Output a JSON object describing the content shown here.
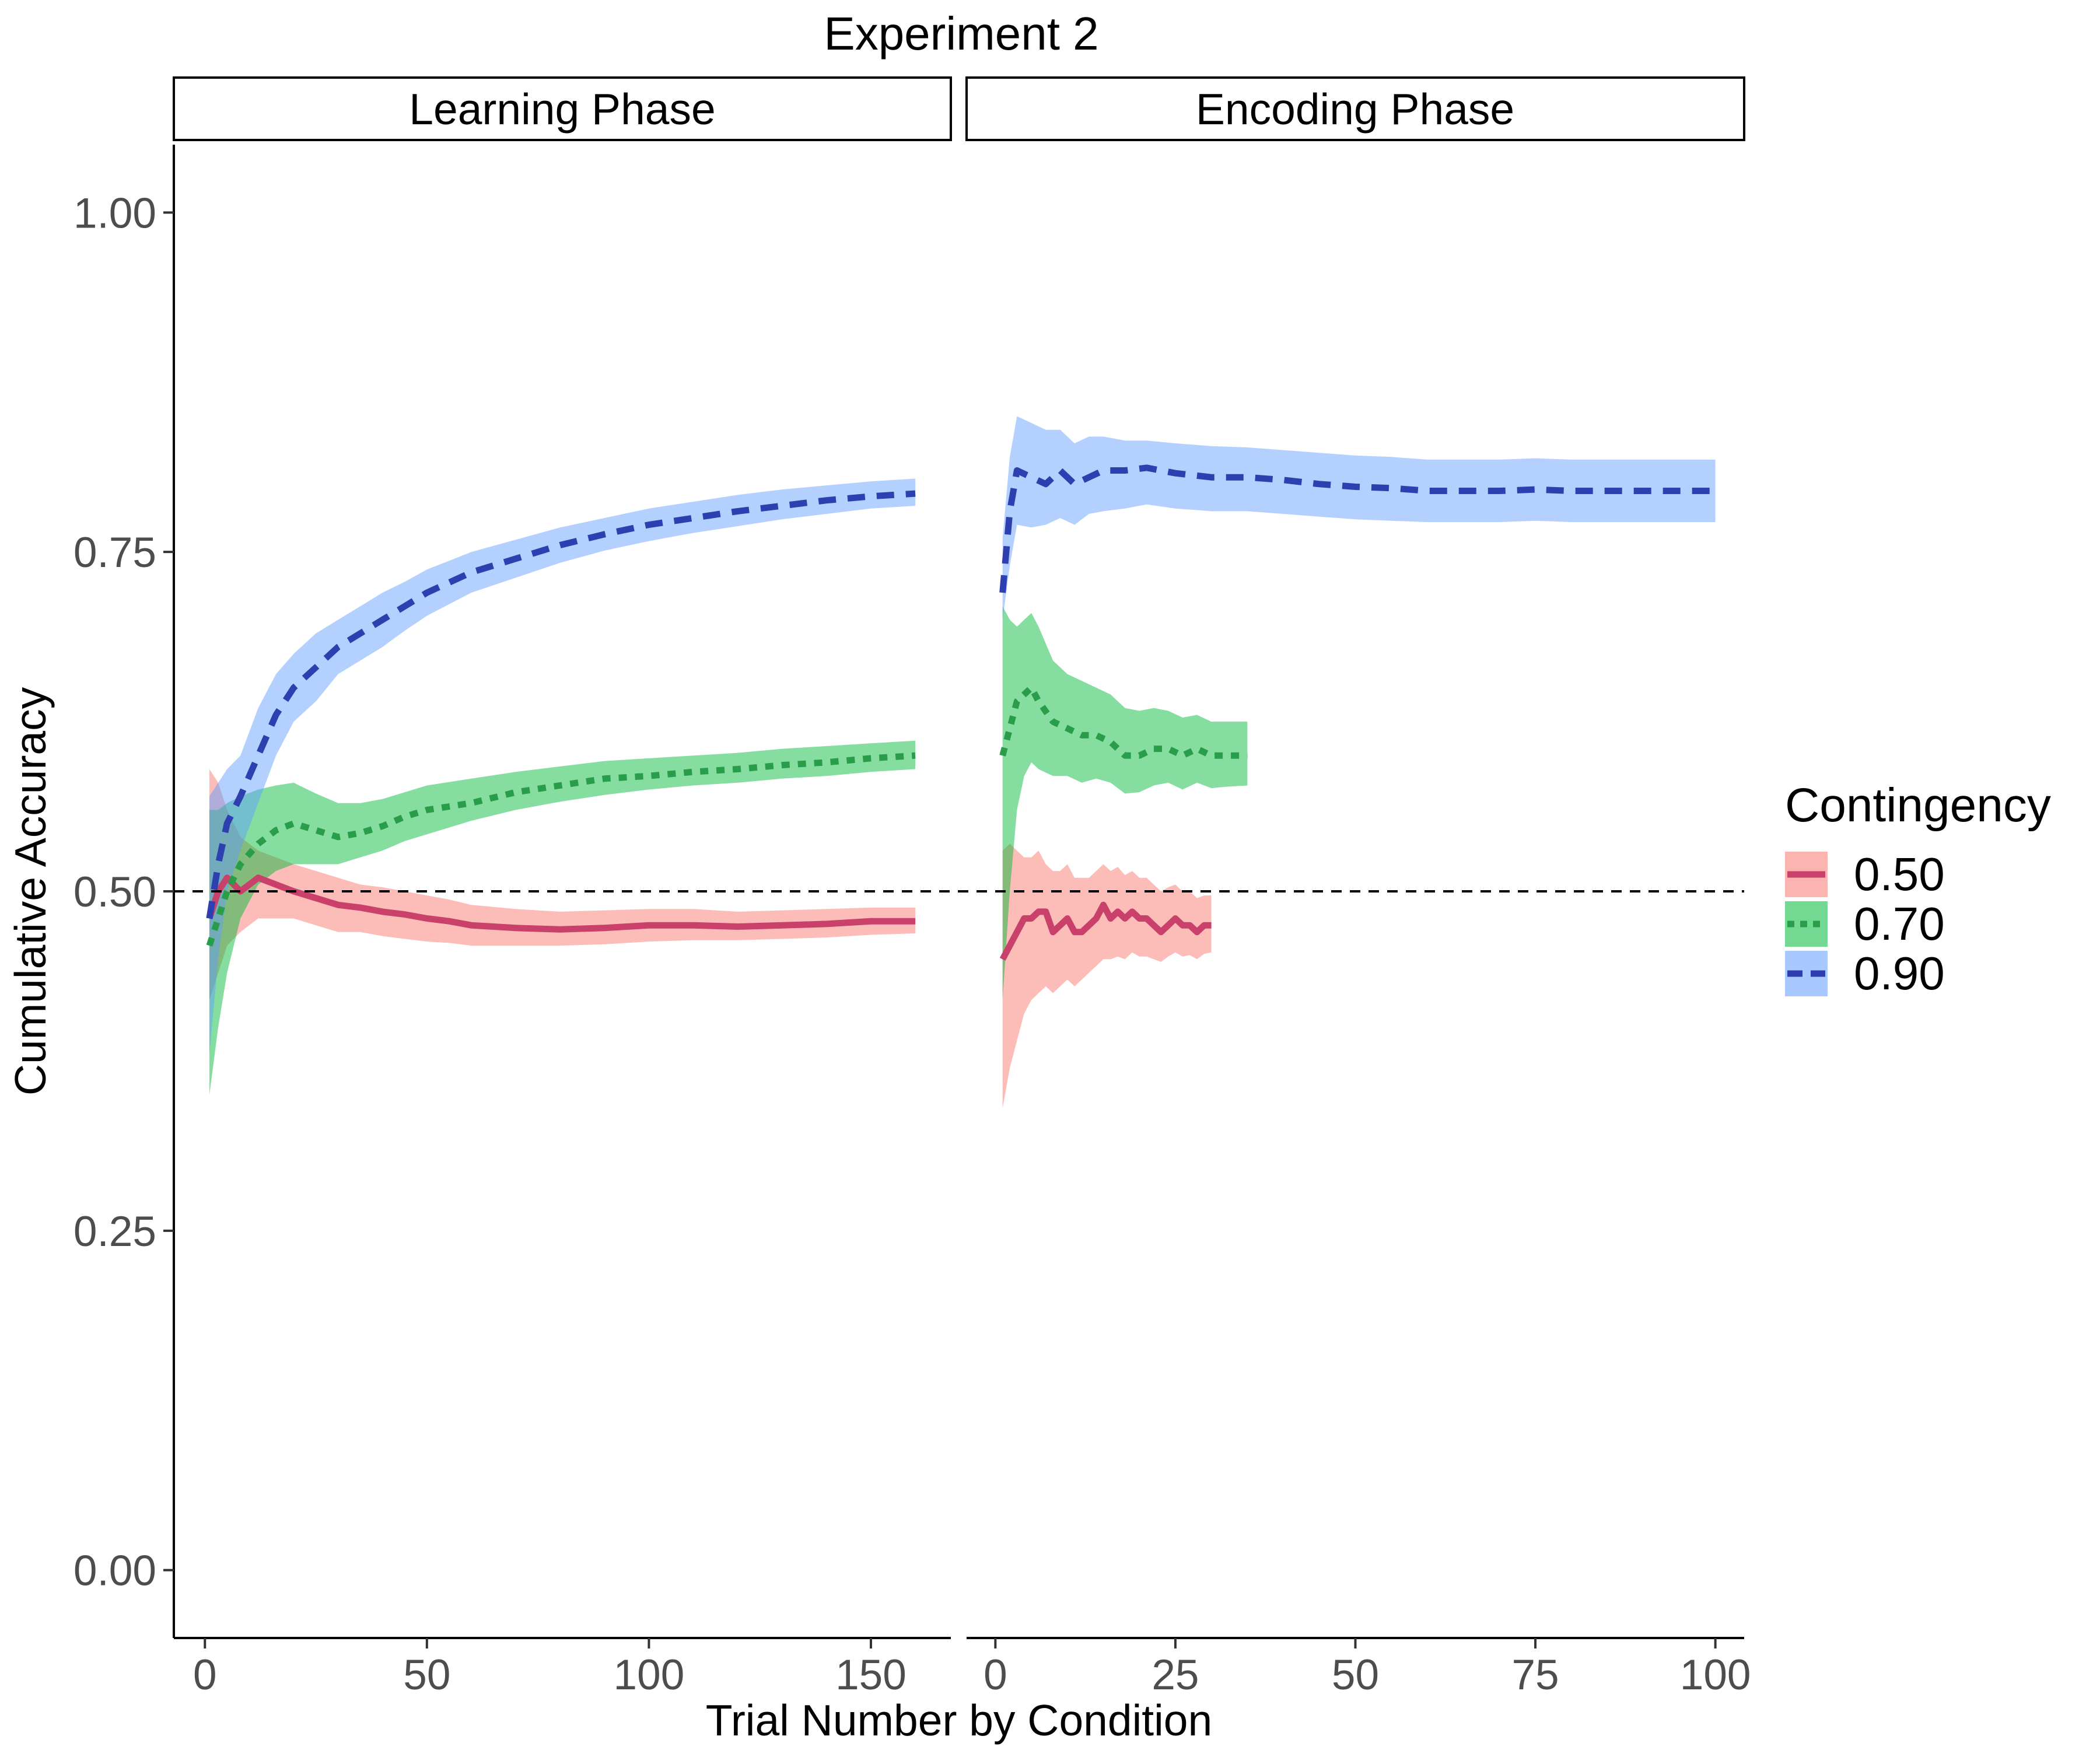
{
  "chart_data": {
    "type": "line",
    "title": "Experiment 2",
    "xlabel": "Trial Number by Condition",
    "ylabel": "Cumulative Accuracy",
    "ylim": [
      -0.05,
      1.05
    ],
    "yticks": [
      "0.00",
      "0.25",
      "0.50",
      "0.75",
      "1.00"
    ],
    "reference_line": {
      "y": 0.5,
      "style": "dashed"
    },
    "grid": false,
    "legend": {
      "title": "Contingency",
      "position": "right",
      "entries": [
        {
          "label": "0.50",
          "color": "#c9406a",
          "fill": "#f8766d",
          "dash": "solid"
        },
        {
          "label": "0.70",
          "color": "#2a9d4b",
          "fill": "#00ba38",
          "dash": "dotted"
        },
        {
          "label": "0.90",
          "color": "#2e3fb0",
          "fill": "#619cff",
          "dash": "dashed"
        }
      ]
    },
    "panels": [
      {
        "strip": "Learning Phase",
        "xlim": [
          -7,
          168
        ],
        "xticks": [
          "0",
          "50",
          "100",
          "150"
        ],
        "series": [
          {
            "name": "0.50",
            "x": [
              1,
              3,
              5,
              8,
              12,
              16,
              20,
              25,
              30,
              35,
              40,
              45,
              50,
              55,
              60,
              70,
              80,
              90,
              100,
              110,
              120,
              130,
              140,
              150,
              160
            ],
            "y": [
              0.48,
              0.5,
              0.51,
              0.5,
              0.51,
              0.505,
              0.5,
              0.495,
              0.49,
              0.488,
              0.485,
              0.483,
              0.48,
              0.478,
              0.475,
              0.473,
              0.472,
              0.473,
              0.475,
              0.475,
              0.474,
              0.475,
              0.476,
              0.478,
              0.478
            ],
            "lower": [
              0.42,
              0.44,
              0.46,
              0.47,
              0.48,
              0.48,
              0.48,
              0.475,
              0.47,
              0.47,
              0.467,
              0.465,
              0.463,
              0.462,
              0.46,
              0.46,
              0.46,
              0.461,
              0.463,
              0.464,
              0.464,
              0.465,
              0.466,
              0.468,
              0.469
            ],
            "upper": [
              0.59,
              0.58,
              0.56,
              0.54,
              0.53,
              0.525,
              0.52,
              0.515,
              0.51,
              0.505,
              0.503,
              0.5,
              0.497,
              0.494,
              0.49,
              0.487,
              0.485,
              0.486,
              0.487,
              0.487,
              0.485,
              0.486,
              0.487,
              0.488,
              0.488
            ]
          },
          {
            "name": "0.70",
            "x": [
              1,
              3,
              5,
              8,
              12,
              16,
              20,
              25,
              30,
              35,
              40,
              45,
              50,
              60,
              70,
              80,
              90,
              100,
              110,
              120,
              130,
              140,
              150,
              160
            ],
            "y": [
              0.46,
              0.48,
              0.5,
              0.52,
              0.535,
              0.545,
              0.55,
              0.545,
              0.54,
              0.543,
              0.548,
              0.555,
              0.56,
              0.565,
              0.573,
              0.578,
              0.583,
              0.585,
              0.588,
              0.59,
              0.593,
              0.595,
              0.598,
              0.6
            ],
            "lower": [
              0.35,
              0.4,
              0.44,
              0.48,
              0.505,
              0.515,
              0.52,
              0.52,
              0.52,
              0.525,
              0.53,
              0.537,
              0.542,
              0.552,
              0.56,
              0.566,
              0.571,
              0.575,
              0.578,
              0.58,
              0.583,
              0.585,
              0.588,
              0.59
            ],
            "upper": [
              0.56,
              0.56,
              0.565,
              0.57,
              0.575,
              0.578,
              0.58,
              0.572,
              0.565,
              0.565,
              0.568,
              0.573,
              0.578,
              0.583,
              0.588,
              0.592,
              0.596,
              0.598,
              0.6,
              0.602,
              0.605,
              0.607,
              0.609,
              0.611
            ]
          },
          {
            "name": "0.90",
            "x": [
              1,
              3,
              5,
              8,
              12,
              16,
              20,
              25,
              30,
              35,
              40,
              45,
              50,
              60,
              70,
              80,
              90,
              100,
              110,
              120,
              130,
              140,
              150,
              160
            ],
            "y": [
              0.48,
              0.52,
              0.55,
              0.57,
              0.6,
              0.63,
              0.65,
              0.665,
              0.68,
              0.69,
              0.7,
              0.71,
              0.72,
              0.735,
              0.745,
              0.755,
              0.763,
              0.77,
              0.775,
              0.78,
              0.784,
              0.788,
              0.791,
              0.793
            ],
            "lower": [
              0.38,
              0.45,
              0.5,
              0.53,
              0.565,
              0.6,
              0.625,
              0.64,
              0.66,
              0.67,
              0.68,
              0.692,
              0.703,
              0.72,
              0.731,
              0.742,
              0.751,
              0.758,
              0.764,
              0.769,
              0.774,
              0.778,
              0.782,
              0.784
            ],
            "upper": [
              0.57,
              0.58,
              0.59,
              0.6,
              0.635,
              0.66,
              0.675,
              0.69,
              0.7,
              0.71,
              0.72,
              0.728,
              0.737,
              0.75,
              0.759,
              0.768,
              0.775,
              0.782,
              0.787,
              0.792,
              0.796,
              0.799,
              0.802,
              0.804
            ]
          }
        ]
      },
      {
        "strip": "Encoding Phase",
        "xlim": [
          -4,
          104
        ],
        "xticks": [
          "0",
          "25",
          "50",
          "75",
          "100"
        ],
        "series": [
          {
            "name": "0.50",
            "x": [
              1,
              2,
              3,
              4,
              5,
              6,
              7,
              8,
              9,
              10,
              11,
              12,
              13,
              14,
              15,
              16,
              17,
              18,
              19,
              20,
              21,
              22,
              23,
              24,
              25,
              26,
              27,
              28,
              29,
              30
            ],
            "y": [
              0.45,
              0.46,
              0.47,
              0.48,
              0.48,
              0.485,
              0.485,
              0.47,
              0.475,
              0.48,
              0.47,
              0.47,
              0.475,
              0.48,
              0.49,
              0.48,
              0.485,
              0.48,
              0.485,
              0.48,
              0.48,
              0.475,
              0.47,
              0.475,
              0.48,
              0.475,
              0.475,
              0.47,
              0.475,
              0.475
            ],
            "lower": [
              0.34,
              0.37,
              0.39,
              0.41,
              0.42,
              0.425,
              0.43,
              0.425,
              0.43,
              0.435,
              0.43,
              0.435,
              0.44,
              0.445,
              0.45,
              0.45,
              0.452,
              0.45,
              0.455,
              0.452,
              0.452,
              0.45,
              0.448,
              0.452,
              0.455,
              0.452,
              0.453,
              0.45,
              0.454,
              0.455
            ],
            "upper": [
              0.53,
              0.535,
              0.53,
              0.525,
              0.525,
              0.53,
              0.52,
              0.515,
              0.515,
              0.52,
              0.51,
              0.51,
              0.51,
              0.515,
              0.52,
              0.515,
              0.518,
              0.512,
              0.515,
              0.51,
              0.51,
              0.505,
              0.5,
              0.503,
              0.505,
              0.5,
              0.5,
              0.495,
              0.497,
              0.497
            ]
          },
          {
            "name": "0.70",
            "x": [
              1,
              2,
              3,
              4,
              5,
              6,
              8,
              10,
              12,
              14,
              16,
              18,
              20,
              22,
              24,
              26,
              28,
              30,
              32,
              35
            ],
            "y": [
              0.6,
              0.62,
              0.64,
              0.645,
              0.65,
              0.64,
              0.625,
              0.62,
              0.615,
              0.615,
              0.61,
              0.6,
              0.6,
              0.605,
              0.605,
              0.6,
              0.605,
              0.6,
              0.6,
              0.6
            ],
            "lower": [
              0.42,
              0.5,
              0.56,
              0.585,
              0.595,
              0.59,
              0.585,
              0.585,
              0.58,
              0.583,
              0.58,
              0.572,
              0.573,
              0.578,
              0.58,
              0.575,
              0.58,
              0.576,
              0.577,
              0.578
            ],
            "upper": [
              0.71,
              0.7,
              0.695,
              0.7,
              0.705,
              0.695,
              0.67,
              0.66,
              0.655,
              0.65,
              0.645,
              0.635,
              0.633,
              0.635,
              0.633,
              0.628,
              0.63,
              0.625,
              0.625,
              0.625
            ]
          },
          {
            "name": "0.90",
            "x": [
              1,
              2,
              3,
              5,
              7,
              9,
              11,
              13,
              15,
              18,
              21,
              25,
              30,
              35,
              40,
              45,
              50,
              55,
              60,
              65,
              70,
              75,
              80,
              85,
              90,
              95,
              100
            ],
            "y": [
              0.72,
              0.78,
              0.81,
              0.805,
              0.8,
              0.81,
              0.8,
              0.805,
              0.81,
              0.81,
              0.812,
              0.808,
              0.805,
              0.805,
              0.803,
              0.8,
              0.798,
              0.797,
              0.795,
              0.795,
              0.795,
              0.796,
              0.795,
              0.795,
              0.795,
              0.795,
              0.795
            ],
            "lower": [
              0.7,
              0.74,
              0.77,
              0.768,
              0.77,
              0.775,
              0.77,
              0.778,
              0.78,
              0.782,
              0.785,
              0.782,
              0.78,
              0.78,
              0.778,
              0.776,
              0.774,
              0.773,
              0.772,
              0.772,
              0.772,
              0.773,
              0.772,
              0.772,
              0.772,
              0.772,
              0.772
            ],
            "upper": [
              0.76,
              0.82,
              0.85,
              0.845,
              0.84,
              0.84,
              0.83,
              0.835,
              0.835,
              0.832,
              0.832,
              0.83,
              0.828,
              0.827,
              0.825,
              0.823,
              0.821,
              0.82,
              0.818,
              0.818,
              0.818,
              0.819,
              0.818,
              0.818,
              0.818,
              0.818,
              0.818
            ]
          }
        ]
      }
    ]
  }
}
